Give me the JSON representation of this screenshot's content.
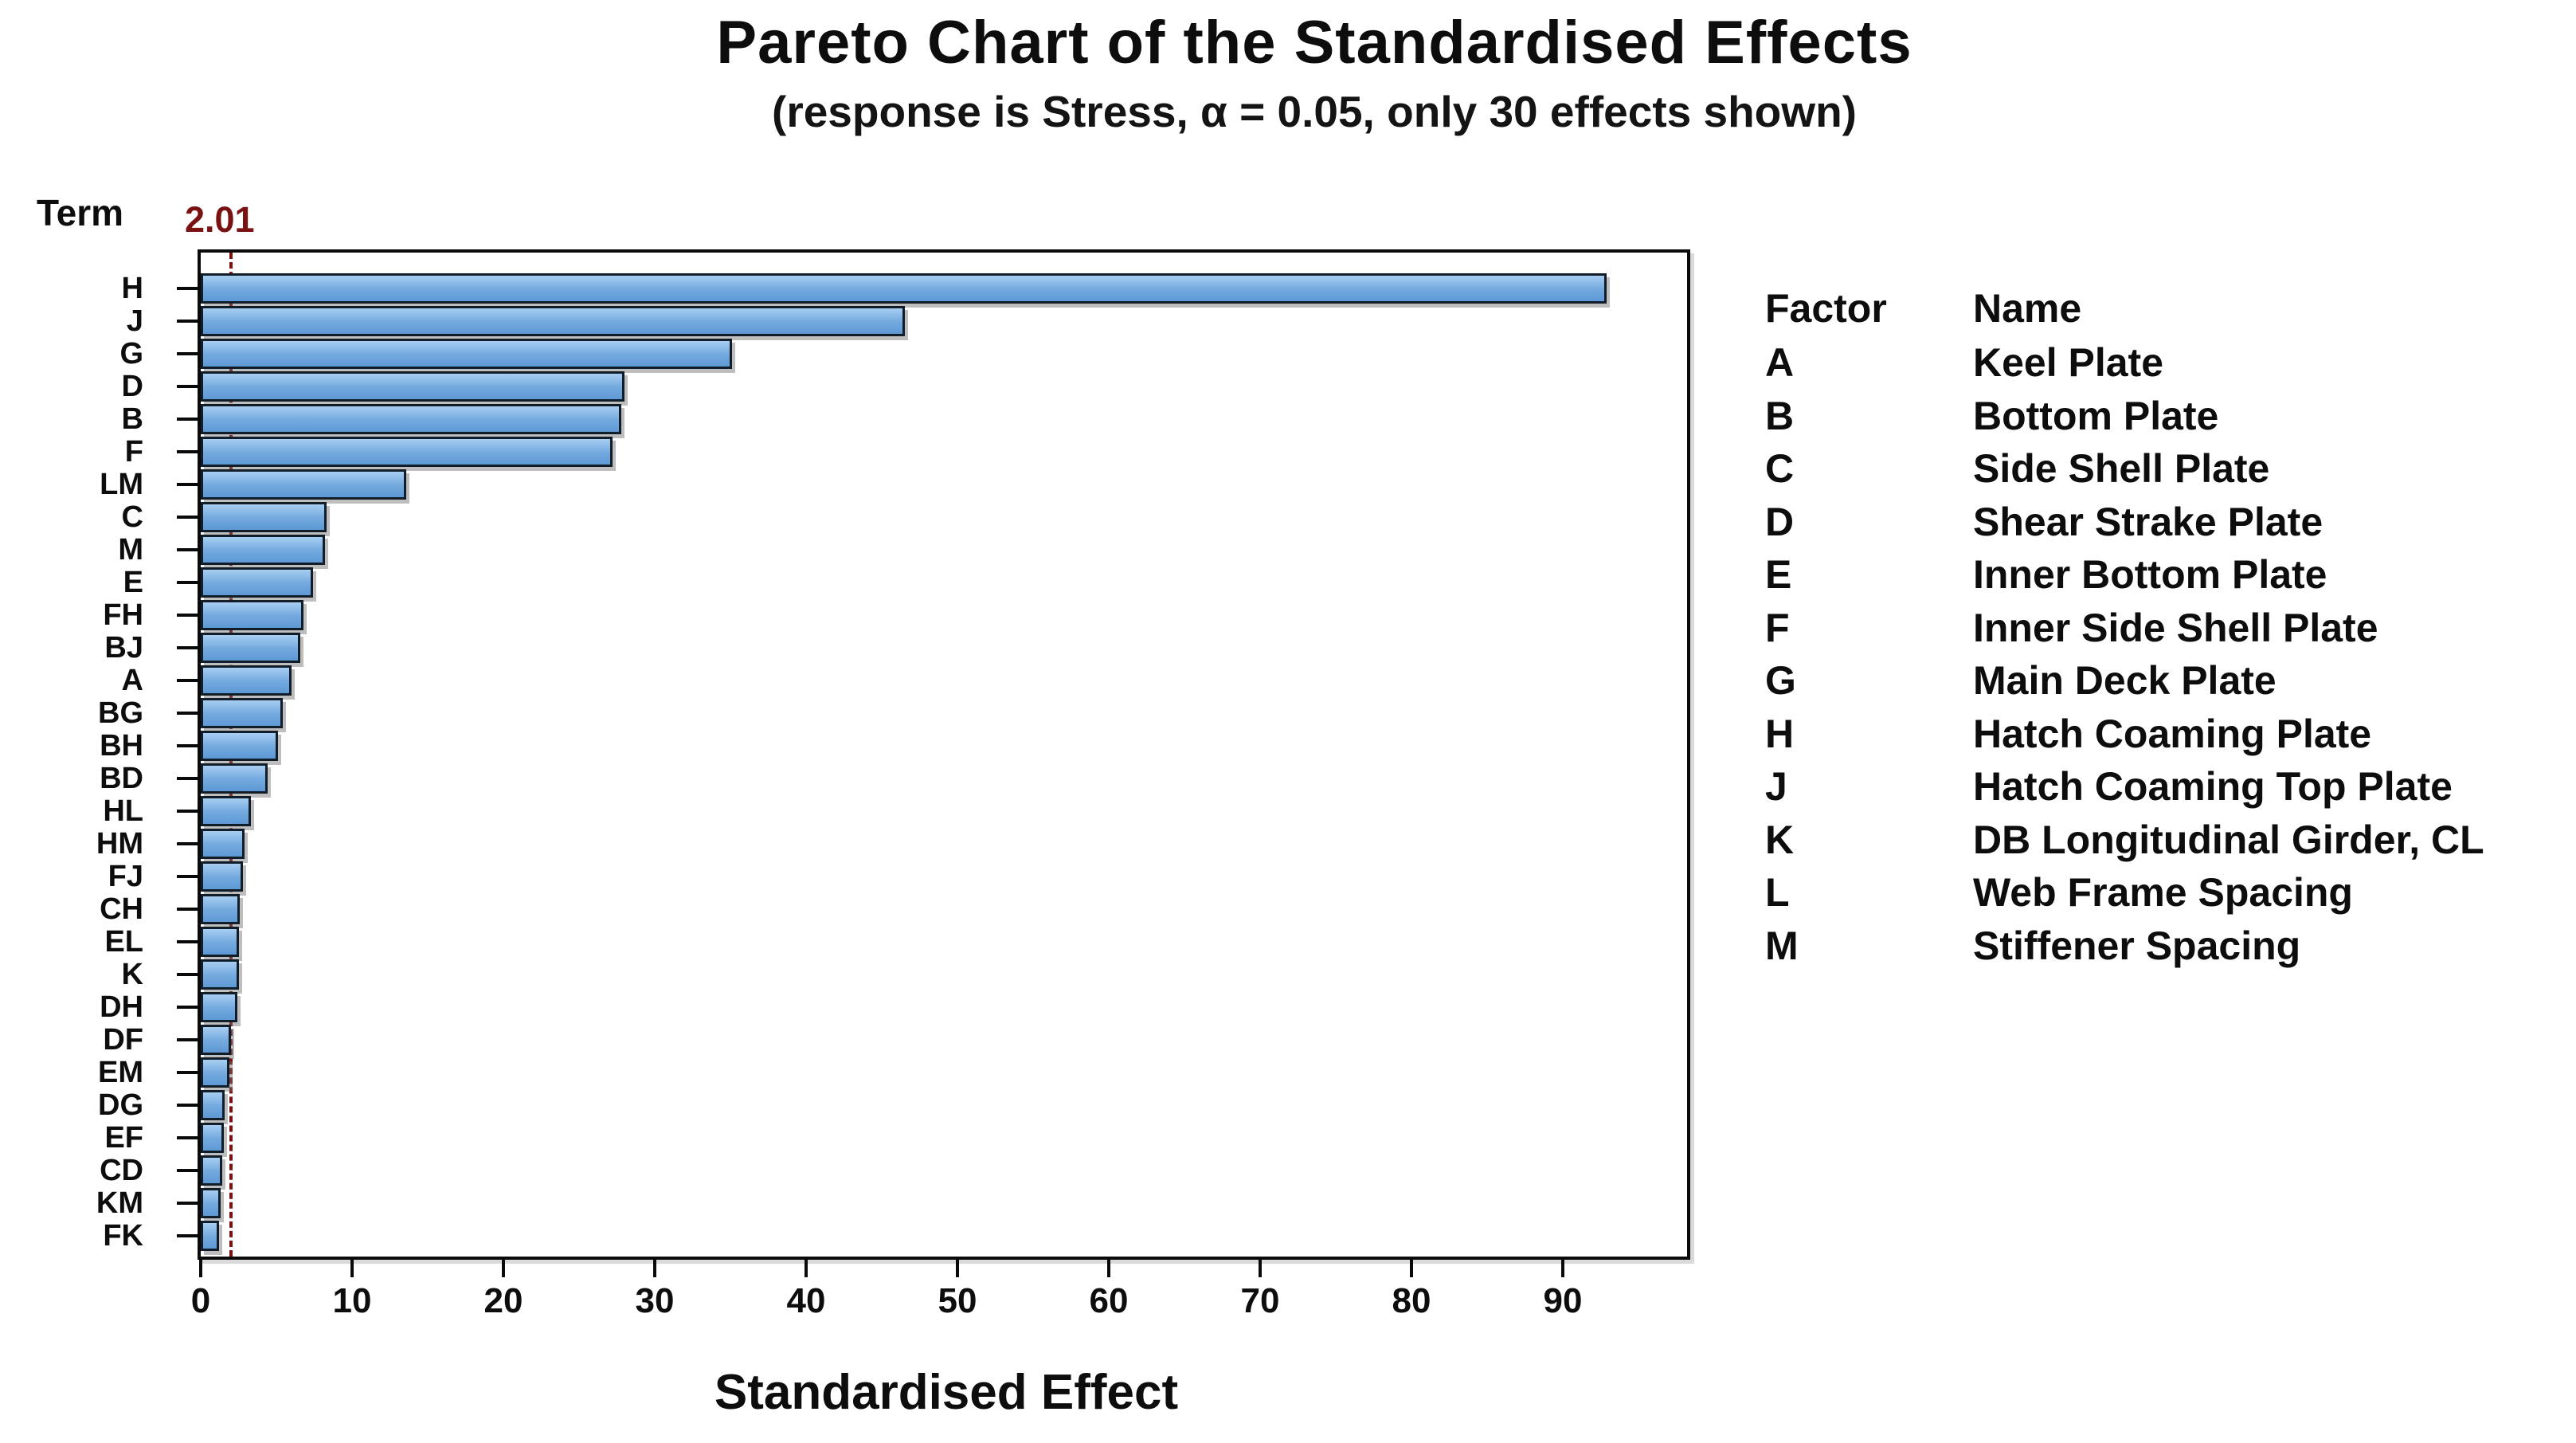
{
  "title": "Pareto Chart of the Standardised Effects",
  "subtitle": "(response is Stress, α = 0.05, only 30 effects shown)",
  "term_axis_label": "Term",
  "x_axis_label": "Standardised Effect",
  "reference_line": {
    "label": "2.01",
    "value": 2.01,
    "color": "#7b1212"
  },
  "chart_data": {
    "type": "bar",
    "orientation": "horizontal",
    "title": "Pareto Chart of the Standardised Effects",
    "subtitle": "(response is Stress, α = 0.05, only 30 effects shown)",
    "xlabel": "Standardised Effect",
    "ylabel": "Term",
    "grid": false,
    "xlim": [
      0,
      98.2
    ],
    "x_ticks": [
      0,
      10,
      20,
      30,
      40,
      50,
      60,
      70,
      80,
      90
    ],
    "reference_value": 2.01,
    "categories": [
      "H",
      "J",
      "G",
      "D",
      "B",
      "F",
      "LM",
      "C",
      "M",
      "E",
      "FH",
      "BJ",
      "A",
      "BG",
      "BH",
      "BD",
      "HL",
      "HM",
      "FJ",
      "CH",
      "EL",
      "K",
      "DH",
      "DF",
      "EM",
      "DG",
      "EF",
      "CD",
      "KM",
      "FK"
    ],
    "values": [
      92.9,
      46.5,
      35.1,
      28.0,
      27.8,
      27.2,
      13.6,
      8.3,
      8.2,
      7.4,
      6.8,
      6.6,
      6.0,
      5.4,
      5.1,
      4.4,
      3.3,
      2.9,
      2.8,
      2.6,
      2.5,
      2.5,
      2.4,
      2.0,
      1.9,
      1.6,
      1.5,
      1.4,
      1.3,
      1.2
    ],
    "bar_fill_top": "#a8cef2",
    "bar_fill_bottom": "#5e99d5",
    "bar_border_color": "#111d28"
  },
  "legend": {
    "factor_header": "Factor",
    "name_header": "Name",
    "rows": [
      {
        "factor": "A",
        "name": "Keel Plate"
      },
      {
        "factor": "B",
        "name": "Bottom Plate"
      },
      {
        "factor": "C",
        "name": "Side Shell Plate"
      },
      {
        "factor": "D",
        "name": "Shear Strake Plate"
      },
      {
        "factor": "E",
        "name": "Inner Bottom Plate"
      },
      {
        "factor": "F",
        "name": "Inner Side Shell Plate"
      },
      {
        "factor": "G",
        "name": "Main Deck Plate"
      },
      {
        "factor": "H",
        "name": "Hatch Coaming Plate"
      },
      {
        "factor": "J",
        "name": "Hatch Coaming Top Plate"
      },
      {
        "factor": "K",
        "name": "DB Longitudinal Girder, CL"
      },
      {
        "factor": "L",
        "name": "Web Frame Spacing"
      },
      {
        "factor": "M",
        "name": "Stiffener Spacing"
      }
    ]
  }
}
